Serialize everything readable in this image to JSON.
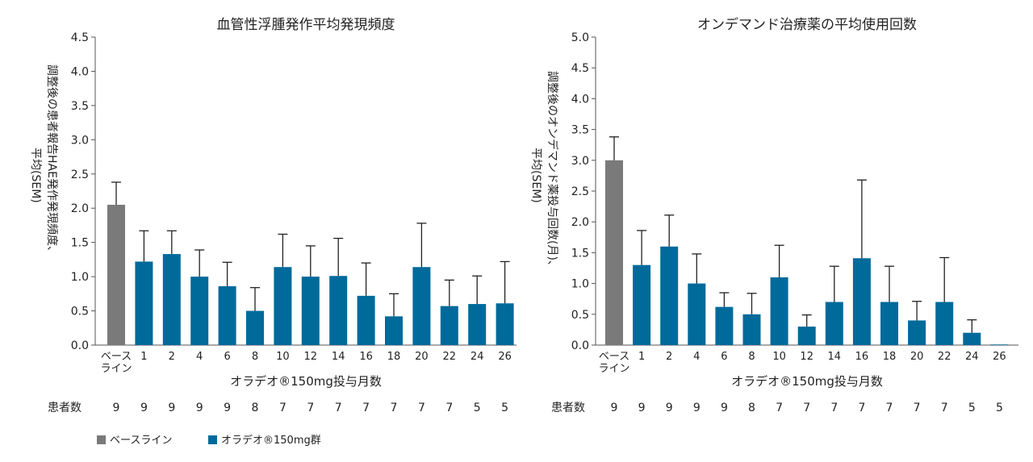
{
  "colors": {
    "baseline": "#7a7a7a",
    "treatment": "#006a9b"
  },
  "patients_label": "患者数",
  "legend": [
    {
      "label": "ベースライン",
      "color": "#7a7a7a"
    },
    {
      "label": "オラデオ®150mg群",
      "color": "#006a9b"
    }
  ],
  "chart_data": [
    {
      "type": "bar",
      "title": "血管性浮腫発作平均発現頻度",
      "ylabel_lines": [
        "調整後の患者報告HAE発作発現頻度、",
        "平均(SEM)"
      ],
      "xlabel": "オラデオ®150mg投与月数",
      "categories": [
        "ベース\nライン",
        "1",
        "2",
        "4",
        "6",
        "8",
        "10",
        "12",
        "14",
        "16",
        "18",
        "20",
        "22",
        "24",
        "26"
      ],
      "values": [
        2.05,
        1.22,
        1.33,
        1.0,
        0.86,
        0.5,
        1.14,
        1.0,
        1.01,
        0.72,
        0.42,
        1.14,
        0.57,
        0.6,
        0.61
      ],
      "errors": [
        0.33,
        0.45,
        0.34,
        0.39,
        0.35,
        0.34,
        0.48,
        0.45,
        0.55,
        0.48,
        0.33,
        0.64,
        0.38,
        0.41,
        0.61
      ],
      "ylim": [
        0,
        4.5
      ],
      "yticks": [
        "0.0",
        "0.5",
        "1.0",
        "1.5",
        "2.0",
        "2.5",
        "3.0",
        "3.5",
        "4.0",
        "4.5"
      ],
      "patient_counts": [
        "9",
        "9",
        "9",
        "9",
        "9",
        "8",
        "7",
        "7",
        "7",
        "7",
        "7",
        "7",
        "7",
        "5",
        "5"
      ]
    },
    {
      "type": "bar",
      "title": "オンデマンド治療薬の平均使用回数",
      "ylabel_lines": [
        "調整後のオンデマンド薬投与回数(月)、",
        "平均(SEM)"
      ],
      "xlabel": "オラデオ®150mg投与月数",
      "categories": [
        "ベース\nライン",
        "1",
        "2",
        "4",
        "6",
        "8",
        "10",
        "12",
        "14",
        "16",
        "18",
        "20",
        "22",
        "24",
        "26"
      ],
      "values": [
        3.0,
        1.3,
        1.6,
        1.0,
        0.62,
        0.5,
        1.1,
        0.3,
        0.7,
        1.41,
        0.7,
        0.4,
        0.7,
        0.2,
        0.01
      ],
      "errors": [
        0.38,
        0.56,
        0.51,
        0.48,
        0.23,
        0.34,
        0.52,
        0.19,
        0.58,
        1.27,
        0.58,
        0.31,
        0.72,
        0.21,
        0.01
      ],
      "ylim": [
        0,
        5.0
      ],
      "yticks": [
        "0.0",
        "0.5",
        "1.0",
        "1.5",
        "2.0",
        "2.5",
        "3.0",
        "3.5",
        "4.0",
        "4.5",
        "5.0"
      ],
      "patient_counts": [
        "9",
        "9",
        "9",
        "9",
        "9",
        "8",
        "7",
        "7",
        "7",
        "7",
        "7",
        "7",
        "7",
        "5",
        "5"
      ]
    }
  ]
}
